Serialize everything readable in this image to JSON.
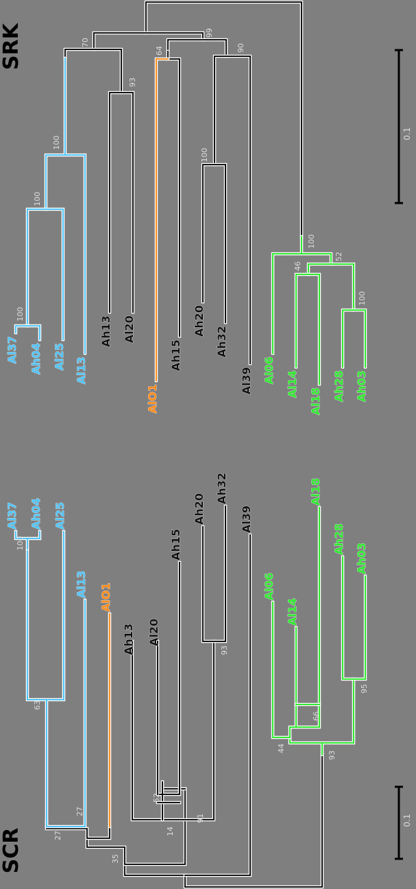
{
  "colors": {
    "background": "#7f7f7f",
    "black_clade": "#111111",
    "blue_clade": "#4fc3f7",
    "orange_clade": "#ff8c1a",
    "green_clade": "#2ee82e",
    "support_text": "#dddddd",
    "line_halo": "#ffffff"
  },
  "panels": {
    "scr": {
      "title": "SCR",
      "scale_label": "0.1"
    },
    "srk": {
      "title": "SRK",
      "scale_label": "0.1"
    }
  },
  "scr_tree": {
    "leaves": [
      {
        "label": "Al37",
        "color": "blue_clade"
      },
      {
        "label": "Ah04",
        "color": "blue_clade"
      },
      {
        "label": "Al25",
        "color": "blue_clade"
      },
      {
        "label": "Al13",
        "color": "blue_clade"
      },
      {
        "label": "AlO1",
        "color": "orange_clade"
      },
      {
        "label": "Ah13",
        "color": "black_clade"
      },
      {
        "label": "Al20",
        "color": "black_clade"
      },
      {
        "label": "Ah15",
        "color": "black_clade"
      },
      {
        "label": "Ah20",
        "color": "black_clade"
      },
      {
        "label": "Ah32",
        "color": "black_clade"
      },
      {
        "label": "Al39",
        "color": "black_clade"
      },
      {
        "label": "Al06",
        "color": "green_clade"
      },
      {
        "label": "Al14",
        "color": "green_clade"
      },
      {
        "label": "Al18",
        "color": "green_clade"
      },
      {
        "label": "Ah28",
        "color": "green_clade"
      },
      {
        "label": "Ah03",
        "color": "green_clade"
      }
    ],
    "support_values": [
      "100",
      "63",
      "27",
      "27",
      "35",
      "14",
      "52",
      "91",
      "93",
      "44",
      "66",
      "93",
      "95"
    ]
  },
  "srk_tree": {
    "leaves": [
      {
        "label": "Al37",
        "color": "blue_clade"
      },
      {
        "label": "Ah04",
        "color": "blue_clade"
      },
      {
        "label": "Al25",
        "color": "blue_clade"
      },
      {
        "label": "Al13",
        "color": "blue_clade"
      },
      {
        "label": "Ah13",
        "color": "black_clade"
      },
      {
        "label": "Al20",
        "color": "black_clade"
      },
      {
        "label": "AlO1",
        "color": "orange_clade"
      },
      {
        "label": "Ah15",
        "color": "black_clade"
      },
      {
        "label": "Ah20",
        "color": "black_clade"
      },
      {
        "label": "Ah32",
        "color": "black_clade"
      },
      {
        "label": "Al39",
        "color": "black_clade"
      },
      {
        "label": "Al06",
        "color": "green_clade"
      },
      {
        "label": "Al14",
        "color": "green_clade"
      },
      {
        "label": "Al18",
        "color": "green_clade"
      },
      {
        "label": "Ah28",
        "color": "green_clade"
      },
      {
        "label": "Ah03",
        "color": "green_clade"
      }
    ],
    "support_values": [
      "100",
      "100",
      "100",
      "70",
      "93",
      "99",
      "64",
      "90",
      "100",
      "100",
      "46",
      "52",
      "100"
    ]
  }
}
